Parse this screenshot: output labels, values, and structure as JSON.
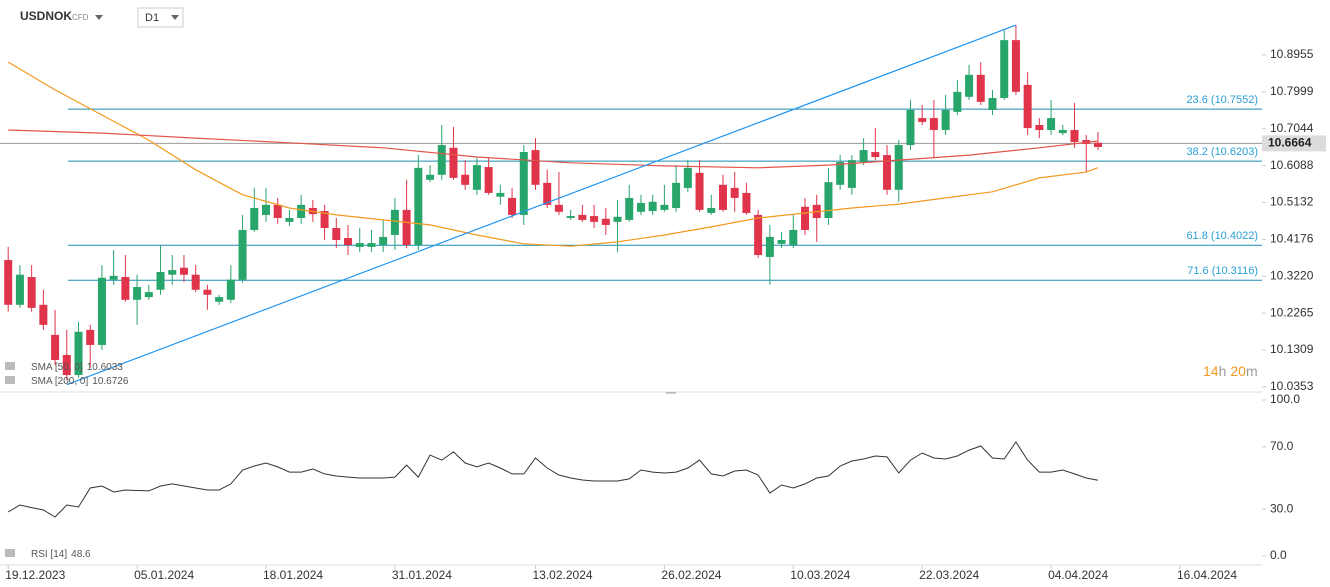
{
  "header": {
    "symbol": "USDNOK",
    "instrument_type": "CFD",
    "timeframe": "D1"
  },
  "countdown": [
    "14",
    "h",
    "20",
    "m"
  ],
  "chart_data": {
    "type": "candlestick",
    "up_color": "#27a56a",
    "down_color": "#e0344a",
    "xlim": [
      -0.7,
      107
    ],
    "xticks": [
      {
        "value": 0,
        "label": "19.12.2023"
      },
      {
        "value": 11,
        "label": "05.01.2024"
      },
      {
        "value": 22,
        "label": "18.01.2024"
      },
      {
        "value": 33,
        "label": "31.01.2024"
      },
      {
        "value": 45,
        "label": "13.02.2024"
      },
      {
        "value": 56,
        "label": "26.02.2024"
      },
      {
        "value": 67,
        "label": "10.03.2024"
      },
      {
        "value": 78,
        "label": "22.03.2024"
      },
      {
        "value": 89,
        "label": "04.04.2024"
      },
      {
        "value": 100,
        "label": "16.04.2024"
      }
    ],
    "ylim": [
      10.022,
      11.038
    ],
    "yticks": [
      10.8955,
      10.7999,
      10.7044,
      10.6088,
      10.5132,
      10.4176,
      {
        "value": 10.322,
        "label": "10.3220"
      },
      10.2265,
      10.1309,
      10.0353
    ],
    "open": [
      10.364,
      10.248,
      10.32,
      10.248,
      10.17,
      10.118,
      10.066,
      10.183,
      10.144,
      10.313,
      10.32,
      10.261,
      10.268,
      10.287,
      10.326,
      10.344,
      10.326,
      10.287,
      10.256,
      10.261,
      10.313,
      10.442,
      10.481,
      10.507,
      10.463,
      10.473,
      10.499,
      10.491,
      10.447,
      10.421,
      10.398,
      10.398,
      10.403,
      10.429,
      10.494,
      10.403,
      10.572,
      10.585,
      10.655,
      10.585,
      10.546,
      10.605,
      10.528,
      10.525,
      10.481,
      10.649,
      10.564,
      10.507,
      10.473,
      10.481,
      10.478,
      10.471,
      10.463,
      10.468,
      10.489,
      10.491,
      10.494,
      10.499,
      10.551,
      10.59,
      10.486,
      10.559,
      10.551,
      10.538,
      10.481,
      10.372,
      10.406,
      10.403,
      10.502,
      10.507,
      10.473,
      10.559,
      10.551,
      10.618,
      10.644,
      10.636,
      10.546,
      10.662,
      10.732,
      10.732,
      10.701,
      10.748,
      10.787,
      10.844,
      10.753,
      10.784,
      10.934,
      10.818,
      10.714,
      10.701,
      10.693,
      10.701,
      10.675,
      10.668
    ],
    "high": [
      10.398,
      10.351,
      10.351,
      10.287,
      10.235,
      10.183,
      10.204,
      10.196,
      10.351,
      10.39,
      10.377,
      10.326,
      10.3,
      10.403,
      10.377,
      10.377,
      10.351,
      10.3,
      10.274,
      10.351,
      10.481,
      10.551,
      10.551,
      10.525,
      10.494,
      10.533,
      10.52,
      10.507,
      10.473,
      10.455,
      10.447,
      10.442,
      10.468,
      10.525,
      10.572,
      10.636,
      10.61,
      10.714,
      10.709,
      10.623,
      10.629,
      10.631,
      10.559,
      10.551,
      10.662,
      10.68,
      10.598,
      10.592,
      10.494,
      10.507,
      10.507,
      10.499,
      10.52,
      10.559,
      10.533,
      10.533,
      10.559,
      10.61,
      10.623,
      10.623,
      10.533,
      10.585,
      10.592,
      10.564,
      10.494,
      10.455,
      10.437,
      10.481,
      10.525,
      10.533,
      10.603,
      10.636,
      10.636,
      10.68,
      10.706,
      10.662,
      10.675,
      10.779,
      10.766,
      10.779,
      10.792,
      10.831,
      10.87,
      10.877,
      10.805,
      10.96,
      10.973,
      10.851,
      10.732,
      10.779,
      10.714,
      10.771,
      10.688,
      10.696
    ],
    "low": [
      10.23,
      10.24,
      10.23,
      10.183,
      10.092,
      10.053,
      10.059,
      10.085,
      10.131,
      10.3,
      10.256,
      10.196,
      10.261,
      10.274,
      10.3,
      10.307,
      10.281,
      10.235,
      10.248,
      10.253,
      10.305,
      10.437,
      10.463,
      10.458,
      10.452,
      10.458,
      10.463,
      10.416,
      10.395,
      10.377,
      10.385,
      10.385,
      10.385,
      10.39,
      10.395,
      10.39,
      10.566,
      10.572,
      10.572,
      10.546,
      10.533,
      10.533,
      10.507,
      10.473,
      10.455,
      10.546,
      10.499,
      10.481,
      10.468,
      10.463,
      10.447,
      10.429,
      10.385,
      10.463,
      10.481,
      10.481,
      10.489,
      10.489,
      10.541,
      10.489,
      10.481,
      10.489,
      10.489,
      10.481,
      10.37,
      10.3,
      10.395,
      10.395,
      10.429,
      10.411,
      10.455,
      10.546,
      10.533,
      10.61,
      10.623,
      10.533,
      10.515,
      10.649,
      10.714,
      10.629,
      10.688,
      10.74,
      10.779,
      10.766,
      10.74,
      10.779,
      10.792,
      10.688,
      10.68,
      10.688,
      10.688,
      10.655,
      10.592,
      10.649
    ],
    "close": [
      10.248,
      10.326,
      10.24,
      10.196,
      10.105,
      10.066,
      10.178,
      10.144,
      10.318,
      10.323,
      10.261,
      10.294,
      10.281,
      10.333,
      10.338,
      10.326,
      10.287,
      10.274,
      10.268,
      10.313,
      10.442,
      10.499,
      10.507,
      10.473,
      10.473,
      10.507,
      10.483,
      10.447,
      10.416,
      10.403,
      10.408,
      10.408,
      10.424,
      10.494,
      10.403,
      10.603,
      10.585,
      10.662,
      10.577,
      10.559,
      10.61,
      10.538,
      10.538,
      10.481,
      10.644,
      10.559,
      10.507,
      10.489,
      10.478,
      10.468,
      10.463,
      10.455,
      10.476,
      10.525,
      10.512,
      10.515,
      10.507,
      10.564,
      10.603,
      10.494,
      10.499,
      10.494,
      10.525,
      10.486,
      10.377,
      10.424,
      10.416,
      10.442,
      10.442,
      10.473,
      10.566,
      10.618,
      10.623,
      10.649,
      10.631,
      10.546,
      10.662,
      10.753,
      10.722,
      10.701,
      10.753,
      10.8,
      10.844,
      10.774,
      10.784,
      10.934,
      10.8,
      10.706,
      10.701,
      10.732,
      10.701,
      10.67,
      10.665,
      10.657
    ],
    "series": [
      {
        "name": "SMA [50, 0]",
        "color": "#f39a1e",
        "x": [
          0,
          4,
          8,
          12,
          16,
          20,
          24,
          28,
          32,
          36,
          40,
          44,
          48,
          52,
          56,
          60,
          64,
          68,
          72,
          76,
          80,
          84,
          88,
          92,
          93
        ],
        "values": [
          10.877,
          10.805,
          10.74,
          10.675,
          10.598,
          10.533,
          10.499,
          10.481,
          10.468,
          10.455,
          10.429,
          10.406,
          10.4,
          10.411,
          10.429,
          10.45,
          10.473,
          10.486,
          10.499,
          10.509,
          10.525,
          10.541,
          10.577,
          10.592,
          10.6033
        ]
      },
      {
        "name": "SMA [200, 0]",
        "color": "#e0564a",
        "x": [
          0,
          8,
          16,
          24,
          32,
          40,
          48,
          56,
          64,
          70,
          76,
          82,
          88,
          93
        ],
        "values": [
          10.701,
          10.693,
          10.68,
          10.668,
          10.655,
          10.631,
          10.616,
          10.608,
          10.603,
          10.61,
          10.623,
          10.636,
          10.655,
          10.6726
        ]
      }
    ],
    "trendline": {
      "color": "#2196f3",
      "x": [
        5,
        86
      ],
      "values": [
        10.041,
        10.973
      ]
    },
    "fib_levels": [
      {
        "label": "23.6 (10.7552)",
        "value": 10.7552
      },
      {
        "label": "38.2 (10.6203)",
        "value": 10.6203
      },
      {
        "label": "61.8 (10.4022)",
        "value": 10.4022
      },
      {
        "label": "71.6 (10.3116)",
        "value": 10.3116
      }
    ],
    "last_price": 10.6664,
    "rsi": {
      "name": "RSI [14]",
      "color": "#333333",
      "ylim": [
        0,
        100
      ],
      "yticks": [
        {
          "value": 100,
          "label": "100.0"
        },
        {
          "value": 70,
          "label": "70.0"
        },
        {
          "value": 30,
          "label": "30.0"
        },
        {
          "value": 0,
          "label": "0.0"
        }
      ],
      "values": [
        28.2,
        32.7,
        31.0,
        29.5,
        25.0,
        32.7,
        31.4,
        43.6,
        44.9,
        41.0,
        42.3,
        42.0,
        41.7,
        44.9,
        46.2,
        44.9,
        43.6,
        42.3,
        42.3,
        46.2,
        55.1,
        57.7,
        59.6,
        57.1,
        53.8,
        53.8,
        55.8,
        52.6,
        51.3,
        50.6,
        50.0,
        50.0,
        50.0,
        50.6,
        58.3,
        50.6,
        64.7,
        61.5,
        66.7,
        59.6,
        57.1,
        59.6,
        56.4,
        52.6,
        52.6,
        62.8,
        56.4,
        51.9,
        50.0,
        48.7,
        48.1,
        48.1,
        48.1,
        49.4,
        55.1,
        53.8,
        53.2,
        53.8,
        56.4,
        61.5,
        52.6,
        51.3,
        54.5,
        55.1,
        51.9,
        40.4,
        45.5,
        43.6,
        46.2,
        50.0,
        51.3,
        57.7,
        60.9,
        62.2,
        64.1,
        63.5,
        53.2,
        61.5,
        66.0,
        62.8,
        62.2,
        64.1,
        67.9,
        70.5,
        62.8,
        62.2,
        73.1,
        61.5,
        53.8,
        53.8,
        55.1,
        52.6,
        50.0,
        48.6
      ]
    }
  }
}
